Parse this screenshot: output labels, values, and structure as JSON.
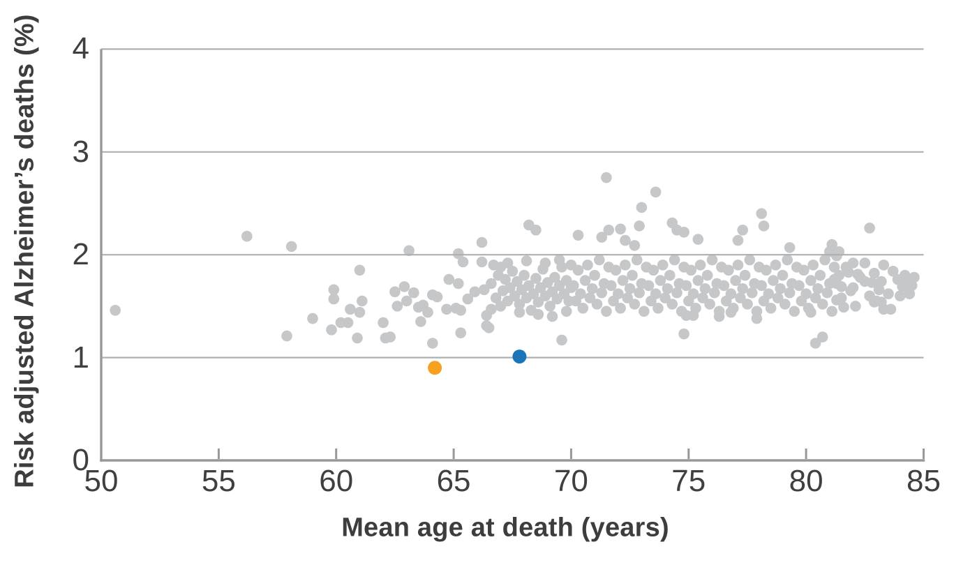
{
  "chart_data": {
    "type": "scatter",
    "title": "",
    "xlabel": "Mean age at death (years)",
    "ylabel": "Risk adjusted Alzheimer’s deaths (%)",
    "xlim": [
      50,
      85
    ],
    "ylim": [
      0,
      4
    ],
    "x_ticks": [
      50,
      55,
      60,
      65,
      70,
      75,
      80,
      85
    ],
    "y_ticks": [
      0,
      1,
      2,
      3,
      4
    ],
    "grid": "horizontal gridlines at y=1,2,3,4",
    "legend": "none",
    "colors": {
      "gray_point": "#c6c7c9",
      "orange_point": "#f6a11f",
      "blue_point": "#1974b8",
      "gridline": "#aeafb1",
      "axis": "#97989b",
      "text": "#3d3d3d"
    },
    "series": [
      {
        "name": "gray-points",
        "color": "#c6c7c9",
        "marker_radius": 7.8,
        "points": [
          [
            50.6,
            1.46
          ],
          [
            56.2,
            2.18
          ],
          [
            57.9,
            1.21
          ],
          [
            58.1,
            2.08
          ],
          [
            59.0,
            1.38
          ],
          [
            59.8,
            1.27
          ],
          [
            59.9,
            1.66
          ],
          [
            59.9,
            1.57
          ],
          [
            60.2,
            1.34
          ],
          [
            60.5,
            1.34
          ],
          [
            60.6,
            1.47
          ],
          [
            60.9,
            1.19
          ],
          [
            61.0,
            1.85
          ],
          [
            61.0,
            1.44
          ],
          [
            61.1,
            1.55
          ],
          [
            62.0,
            1.34
          ],
          [
            62.1,
            1.19
          ],
          [
            62.3,
            1.2
          ],
          [
            62.5,
            1.64
          ],
          [
            62.6,
            1.5
          ],
          [
            62.9,
            1.69
          ],
          [
            63.0,
            1.55
          ],
          [
            63.3,
            1.63
          ],
          [
            63.1,
            2.04
          ],
          [
            63.5,
            1.49
          ],
          [
            63.6,
            1.35
          ],
          [
            63.7,
            1.51
          ],
          [
            63.9,
            1.44
          ],
          [
            64.1,
            1.61
          ],
          [
            64.1,
            1.14
          ],
          [
            64.3,
            1.59
          ],
          [
            64.7,
            1.47
          ],
          [
            64.8,
            1.76
          ],
          [
            65.1,
            1.48
          ],
          [
            65.3,
            1.24
          ],
          [
            65.2,
            2.01
          ],
          [
            65.2,
            1.72
          ],
          [
            65.3,
            1.46
          ],
          [
            65.4,
            1.93
          ],
          [
            65.6,
            1.57
          ],
          [
            65.9,
            1.64
          ],
          [
            66.2,
            2.12
          ],
          [
            66.2,
            1.93
          ],
          [
            66.3,
            1.66
          ],
          [
            66.4,
            1.41
          ],
          [
            66.4,
            1.31
          ],
          [
            66.5,
            1.29
          ],
          [
            68.2,
            2.29
          ],
          [
            68.5,
            2.24
          ],
          [
            69.6,
            1.17
          ],
          [
            66.6,
            1.72
          ],
          [
            66.6,
            1.47
          ],
          [
            66.7,
            1.9
          ],
          [
            66.8,
            1.58
          ],
          [
            66.9,
            1.8
          ],
          [
            67.0,
            1.5
          ],
          [
            67.0,
            1.88
          ],
          [
            67.1,
            1.65
          ],
          [
            67.2,
            1.76
          ],
          [
            67.3,
            1.55
          ],
          [
            67.3,
            1.92
          ],
          [
            67.4,
            1.68
          ],
          [
            67.5,
            1.84
          ],
          [
            67.6,
            1.6
          ],
          [
            67.7,
            1.74
          ],
          [
            67.8,
            1.52
          ],
          [
            67.8,
            1.44
          ],
          [
            67.9,
            1.66
          ],
          [
            68.0,
            1.8
          ],
          [
            68.1,
            1.58
          ],
          [
            68.1,
            1.94
          ],
          [
            68.2,
            1.7
          ],
          [
            68.3,
            1.46
          ],
          [
            68.4,
            1.62
          ],
          [
            68.5,
            1.77
          ],
          [
            68.6,
            1.54
          ],
          [
            68.6,
            1.42
          ],
          [
            68.7,
            1.68
          ],
          [
            68.8,
            1.86
          ],
          [
            68.9,
            1.6
          ],
          [
            68.9,
            1.92
          ],
          [
            69.0,
            1.73
          ],
          [
            69.1,
            1.5
          ],
          [
            69.2,
            1.64
          ],
          [
            69.2,
            1.4
          ],
          [
            69.3,
            1.78
          ],
          [
            69.4,
            1.57
          ],
          [
            69.5,
            1.7
          ],
          [
            69.5,
            1.95
          ],
          [
            69.6,
            1.88
          ],
          [
            69.7,
            1.62
          ],
          [
            69.8,
            1.75
          ],
          [
            69.8,
            1.45
          ],
          [
            69.9,
            1.55
          ],
          [
            70.0,
            1.68
          ],
          [
            70.0,
            1.9
          ],
          [
            70.3,
            2.19
          ],
          [
            71.3,
            2.17
          ],
          [
            71.5,
            2.75
          ],
          [
            71.6,
            2.24
          ],
          [
            72.1,
            2.25
          ],
          [
            72.3,
            2.14
          ],
          [
            72.7,
            2.09
          ],
          [
            72.9,
            2.28
          ],
          [
            73.0,
            2.46
          ],
          [
            73.6,
            2.61
          ],
          [
            74.3,
            2.31
          ],
          [
            74.5,
            2.24
          ],
          [
            74.8,
            2.22
          ],
          [
            75.4,
            2.15
          ],
          [
            77.1,
            2.14
          ],
          [
            77.3,
            2.24
          ],
          [
            78.1,
            2.4
          ],
          [
            78.2,
            2.28
          ],
          [
            79.3,
            2.07
          ],
          [
            81.0,
            2.03
          ],
          [
            81.1,
            2.1
          ],
          [
            81.3,
            1.99
          ],
          [
            81.4,
            2.03
          ],
          [
            82.7,
            2.26
          ],
          [
            74.8,
            1.23
          ],
          [
            74.9,
            1.41
          ],
          [
            75.2,
            1.41
          ],
          [
            76.3,
            1.4
          ],
          [
            76.8,
            1.44
          ],
          [
            77.9,
            1.38
          ],
          [
            80.2,
            1.44
          ],
          [
            80.4,
            1.14
          ],
          [
            80.7,
            1.2
          ],
          [
            83.2,
            1.54
          ],
          [
            83.6,
            1.47
          ],
          [
            70.1,
            1.7
          ],
          [
            70.2,
            1.55
          ],
          [
            70.3,
            1.85
          ],
          [
            70.4,
            1.62
          ],
          [
            70.5,
            1.48
          ],
          [
            70.6,
            1.75
          ],
          [
            70.7,
            1.9
          ],
          [
            70.8,
            1.58
          ],
          [
            70.9,
            1.67
          ],
          [
            71.0,
            1.8
          ],
          [
            71.1,
            1.52
          ],
          [
            71.2,
            1.95
          ],
          [
            71.3,
            1.63
          ],
          [
            71.4,
            1.72
          ],
          [
            71.5,
            1.45
          ],
          [
            71.6,
            1.88
          ],
          [
            71.7,
            1.7
          ],
          [
            71.8,
            1.55
          ],
          [
            71.9,
            1.85
          ],
          [
            72.0,
            1.62
          ],
          [
            72.1,
            1.48
          ],
          [
            72.2,
            1.75
          ],
          [
            72.3,
            1.9
          ],
          [
            72.4,
            1.58
          ],
          [
            72.5,
            1.67
          ],
          [
            72.6,
            1.8
          ],
          [
            72.7,
            1.52
          ],
          [
            72.8,
            1.95
          ],
          [
            72.9,
            1.63
          ],
          [
            73.0,
            1.72
          ],
          [
            73.1,
            1.45
          ],
          [
            73.2,
            1.88
          ],
          [
            73.3,
            1.7
          ],
          [
            73.4,
            1.55
          ],
          [
            73.5,
            1.85
          ],
          [
            73.6,
            1.62
          ],
          [
            73.7,
            1.48
          ],
          [
            73.8,
            1.75
          ],
          [
            73.9,
            1.9
          ],
          [
            74.0,
            1.58
          ],
          [
            74.1,
            1.67
          ],
          [
            74.2,
            1.8
          ],
          [
            74.3,
            1.52
          ],
          [
            74.4,
            1.95
          ],
          [
            74.5,
            1.63
          ],
          [
            74.6,
            1.72
          ],
          [
            74.7,
            1.45
          ],
          [
            74.8,
            1.88
          ],
          [
            74.9,
            1.7
          ],
          [
            75.0,
            1.55
          ],
          [
            75.1,
            1.85
          ],
          [
            75.2,
            1.62
          ],
          [
            75.3,
            1.48
          ],
          [
            75.4,
            1.75
          ],
          [
            75.5,
            1.9
          ],
          [
            75.6,
            1.58
          ],
          [
            75.7,
            1.67
          ],
          [
            75.8,
            1.8
          ],
          [
            75.9,
            1.52
          ],
          [
            76.0,
            1.95
          ],
          [
            76.1,
            1.63
          ],
          [
            76.2,
            1.72
          ],
          [
            76.3,
            1.45
          ],
          [
            76.4,
            1.88
          ],
          [
            76.5,
            1.7
          ],
          [
            76.6,
            1.55
          ],
          [
            76.7,
            1.85
          ],
          [
            76.8,
            1.62
          ],
          [
            76.9,
            1.48
          ],
          [
            77.0,
            1.75
          ],
          [
            77.1,
            1.9
          ],
          [
            77.2,
            1.58
          ],
          [
            77.3,
            1.67
          ],
          [
            77.4,
            1.8
          ],
          [
            77.5,
            1.52
          ],
          [
            77.6,
            1.95
          ],
          [
            77.7,
            1.63
          ],
          [
            77.8,
            1.72
          ],
          [
            77.9,
            1.45
          ],
          [
            78.0,
            1.88
          ],
          [
            78.1,
            1.7
          ],
          [
            78.2,
            1.55
          ],
          [
            78.3,
            1.85
          ],
          [
            78.4,
            1.62
          ],
          [
            78.5,
            1.48
          ],
          [
            78.6,
            1.75
          ],
          [
            78.7,
            1.9
          ],
          [
            78.8,
            1.58
          ],
          [
            78.9,
            1.67
          ],
          [
            79.0,
            1.8
          ],
          [
            79.1,
            1.52
          ],
          [
            79.2,
            1.95
          ],
          [
            79.3,
            1.63
          ],
          [
            79.4,
            1.72
          ],
          [
            79.5,
            1.45
          ],
          [
            79.6,
            1.88
          ],
          [
            79.7,
            1.7
          ],
          [
            79.8,
            1.55
          ],
          [
            79.9,
            1.85
          ],
          [
            80.0,
            1.62
          ],
          [
            80.1,
            1.48
          ],
          [
            80.2,
            1.75
          ],
          [
            80.3,
            1.9
          ],
          [
            80.4,
            1.58
          ],
          [
            80.5,
            1.67
          ],
          [
            80.6,
            1.8
          ],
          [
            80.7,
            1.52
          ],
          [
            80.8,
            1.95
          ],
          [
            80.9,
            1.63
          ],
          [
            81.0,
            1.72
          ],
          [
            81.1,
            1.45
          ],
          [
            81.2,
            1.88
          ],
          [
            81.2,
            1.76
          ],
          [
            81.3,
            1.56
          ],
          [
            81.4,
            1.8
          ],
          [
            81.5,
            1.69
          ],
          [
            81.6,
            1.49
          ],
          [
            81.8,
            1.83
          ],
          [
            82.0,
            1.92
          ],
          [
            82.0,
            1.68
          ],
          [
            82.2,
            1.81
          ],
          [
            82.5,
            1.74
          ],
          [
            82.8,
            1.73
          ],
          [
            82.9,
            1.54
          ],
          [
            83.0,
            1.55
          ],
          [
            83.2,
            1.74
          ],
          [
            83.3,
            1.47
          ],
          [
            83.9,
            1.76
          ],
          [
            84.1,
            1.71
          ],
          [
            84.1,
            1.69
          ],
          [
            84.2,
            1.8
          ],
          [
            84.3,
            1.76
          ],
          [
            84.5,
            1.7
          ],
          [
            81.3,
            1.72
          ],
          [
            81.5,
            1.58
          ],
          [
            81.7,
            1.88
          ],
          [
            81.9,
            1.65
          ],
          [
            82.1,
            1.5
          ],
          [
            82.3,
            1.78
          ],
          [
            82.5,
            1.92
          ],
          [
            82.7,
            1.6
          ],
          [
            82.9,
            1.82
          ],
          [
            83.1,
            1.66
          ],
          [
            83.3,
            1.9
          ],
          [
            83.5,
            1.62
          ],
          [
            83.7,
            1.84
          ],
          [
            84.0,
            1.6
          ],
          [
            84.4,
            1.62
          ],
          [
            84.6,
            1.78
          ]
        ]
      },
      {
        "name": "highlight-orange",
        "color": "#f6a11f",
        "marker_radius": 10,
        "points": [
          [
            64.2,
            0.9
          ]
        ]
      },
      {
        "name": "highlight-blue",
        "color": "#1974b8",
        "marker_radius": 10,
        "points": [
          [
            67.8,
            1.01
          ]
        ]
      }
    ]
  }
}
